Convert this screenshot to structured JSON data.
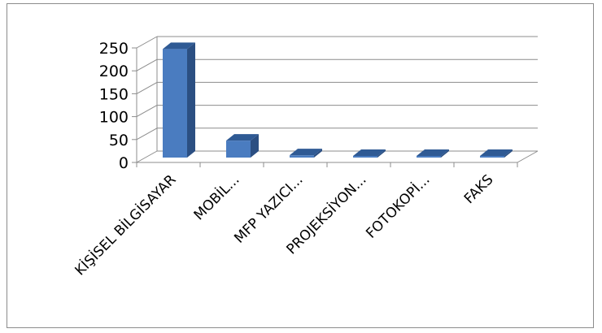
{
  "chart_data": {
    "type": "bar",
    "style": "3d-column",
    "title": "",
    "xlabel": "",
    "ylabel": "",
    "categories": [
      "KİŞİSEL BİLGİSAYAR",
      "MOBİL...",
      "MFP YAZICI...",
      "PROJEKSİYON...",
      "FOTOKOPİ...",
      "FAKS"
    ],
    "values": [
      237,
      37,
      5,
      2,
      3,
      1
    ],
    "ylim": [
      0,
      250
    ],
    "yticks": [
      "0",
      "50",
      "100",
      "150",
      "200",
      "250"
    ],
    "grid": true,
    "legend": "none",
    "colors": {
      "bar_front": "#4a7cc0",
      "bar_top": "#2f5a94",
      "bar_side": "#2b4f82",
      "grid": "#8c8c8c",
      "frame": "#8c8c8c"
    }
  }
}
